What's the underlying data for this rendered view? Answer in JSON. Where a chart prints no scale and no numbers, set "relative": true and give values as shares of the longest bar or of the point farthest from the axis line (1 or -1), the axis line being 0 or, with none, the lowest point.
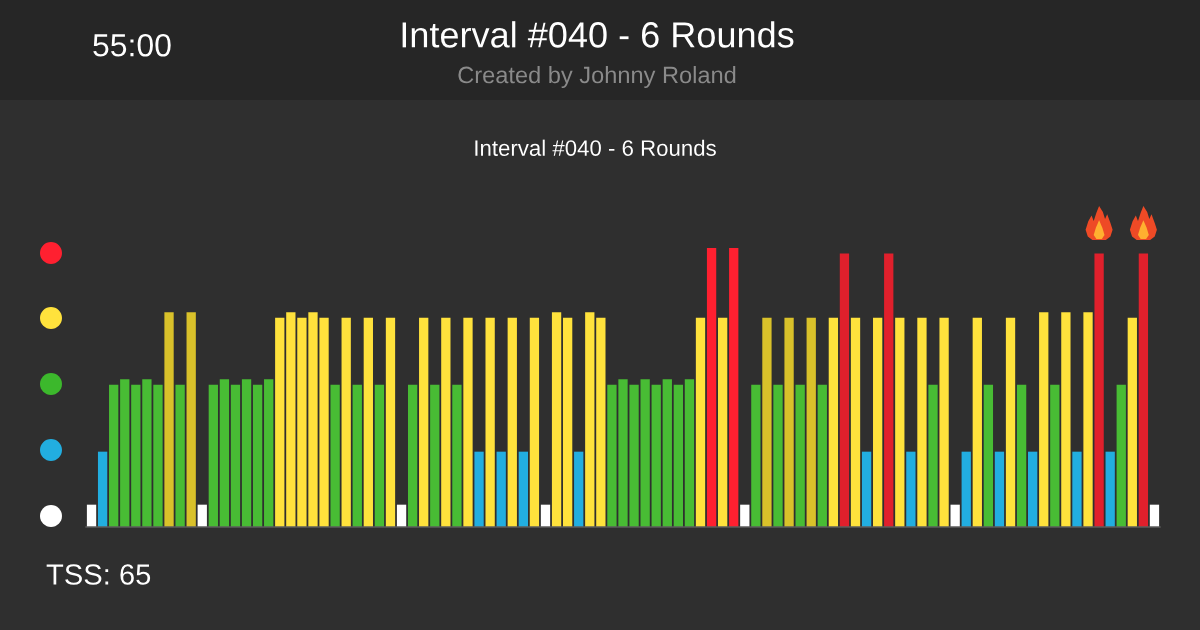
{
  "chart_data": {
    "type": "bar",
    "title": "Interval #040 - 6 Rounds",
    "subtitle": "Created by Johnny Roland",
    "annotations": [
      "55:00",
      "Interval #040 - 6 Rounds",
      "TSS: 65"
    ],
    "relative": true,
    "categories": [
      null,
      null,
      null,
      null,
      null,
      null,
      null,
      null,
      null,
      null,
      null,
      null,
      null,
      null,
      null,
      null,
      null,
      null,
      null,
      null,
      null,
      null,
      null,
      null,
      null,
      null,
      null,
      null,
      null,
      null,
      null,
      null,
      null,
      null,
      null,
      null,
      null,
      null,
      null,
      null,
      null,
      null,
      null,
      null,
      null,
      null,
      null,
      null,
      null,
      null,
      null,
      null,
      null,
      null,
      null,
      null,
      null,
      null,
      null,
      null,
      null,
      null,
      null,
      null,
      null,
      null,
      null,
      null,
      null,
      null,
      null,
      null,
      null,
      null,
      null,
      null,
      null,
      null,
      null,
      null,
      null,
      null,
      null,
      null,
      null,
      null,
      null,
      null,
      null,
      null,
      null,
      null,
      null,
      null,
      null,
      null,
      null
    ],
    "values": [
      0.08,
      0.27,
      0.51,
      0.53,
      0.51,
      0.53,
      0.51,
      0.77,
      0.51,
      0.77,
      0.08,
      0.51,
      0.53,
      0.51,
      0.53,
      0.51,
      0.53,
      0.75,
      0.77,
      0.75,
      0.77,
      0.75,
      0.51,
      0.75,
      0.51,
      0.75,
      0.51,
      0.75,
      0.08,
      0.51,
      0.75,
      0.51,
      0.75,
      0.51,
      0.75,
      0.27,
      0.75,
      0.27,
      0.75,
      0.27,
      0.75,
      0.08,
      0.77,
      0.75,
      0.27,
      0.77,
      0.75,
      0.51,
      0.53,
      0.51,
      0.53,
      0.51,
      0.53,
      0.51,
      0.53,
      0.75,
      1,
      0.75,
      1,
      0.08,
      0.51,
      0.75,
      0.51,
      0.75,
      0.51,
      0.75,
      0.51,
      0.75,
      0.98,
      0.75,
      0.27,
      0.75,
      0.98,
      0.75,
      0.27,
      0.75,
      0.51,
      0.75,
      0.08,
      0.27,
      0.75,
      0.51,
      0.27,
      0.75,
      0.51,
      0.27,
      0.77,
      0.51,
      0.77,
      0.27,
      0.77,
      0.98,
      0.27,
      0.51,
      0.75,
      0.98,
      0.08
    ],
    "colors": [
      "#ffffff",
      "#22aee0",
      "#48bc34",
      "#48bc34",
      "#48bc34",
      "#48bc34",
      "#48bc34",
      "#d9c12a",
      "#48bc34",
      "#d9c12a",
      "#ffffff",
      "#48bc34",
      "#48bc34",
      "#48bc34",
      "#48bc34",
      "#48bc34",
      "#48bc34",
      "#ffe23c",
      "#ffe23c",
      "#ffe23c",
      "#ffe23c",
      "#ffe23c",
      "#48bc34",
      "#ffe23c",
      "#48bc34",
      "#ffe23c",
      "#48bc34",
      "#ffe23c",
      "#ffffff",
      "#48bc34",
      "#ffe23c",
      "#48bc34",
      "#ffe23c",
      "#48bc34",
      "#ffe23c",
      "#22aee0",
      "#ffe23c",
      "#22aee0",
      "#ffe23c",
      "#22aee0",
      "#ffe23c",
      "#ffffff",
      "#ffe23c",
      "#ffe23c",
      "#22aee0",
      "#ffe23c",
      "#ffe23c",
      "#48bc34",
      "#48bc34",
      "#48bc34",
      "#48bc34",
      "#48bc34",
      "#48bc34",
      "#48bc34",
      "#48bc34",
      "#ffe23c",
      "#ff2030",
      "#ffe23c",
      "#ff2030",
      "#ffffff",
      "#48bc34",
      "#d9c12a",
      "#48bc34",
      "#d9c12a",
      "#48bc34",
      "#d9c12a",
      "#48bc34",
      "#ffe23c",
      "#e0202c",
      "#ffe23c",
      "#22aee0",
      "#ffe23c",
      "#e0202c",
      "#ffe23c",
      "#22aee0",
      "#ffe23c",
      "#48bc34",
      "#ffe23c",
      "#ffffff",
      "#22aee0",
      "#ffe23c",
      "#48bc34",
      "#22aee0",
      "#ffe23c",
      "#48bc34",
      "#22aee0",
      "#ffe23c",
      "#48bc34",
      "#ffe23c",
      "#22aee0",
      "#ffe23c",
      "#e0202c",
      "#22aee0",
      "#48bc34",
      "#ffe23c",
      "#e0202c",
      "#ffffff"
    ]
  }
}
